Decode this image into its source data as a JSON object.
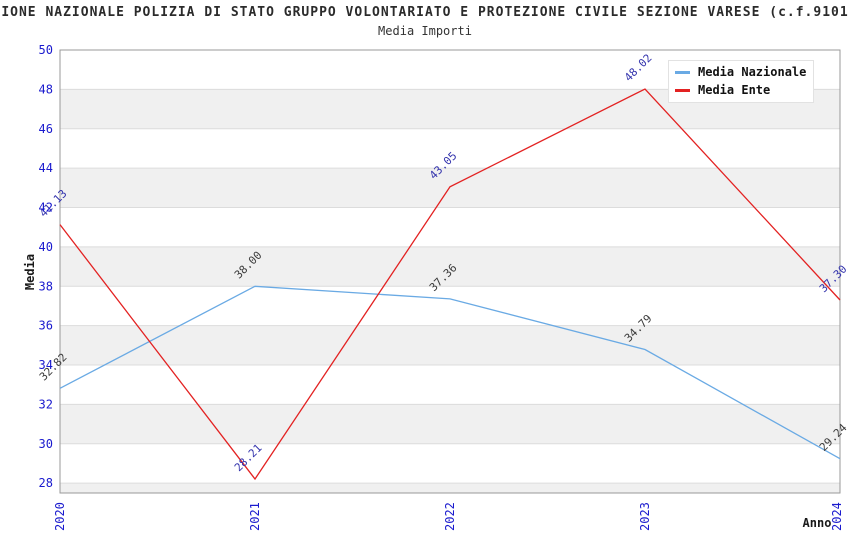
{
  "figure": {
    "title": "IONE NAZIONALE POLIZIA DI STATO GRUPPO VOLONTARIATO E PROTEZIONE CIVILE SEZIONE VARESE (c.f.9101",
    "subtitle": "Media Importi"
  },
  "chart_data": {
    "type": "line",
    "title": "Media Importi",
    "categories": [
      "2020",
      "2021",
      "2022",
      "2023",
      "2024"
    ],
    "series": [
      {
        "name": "Media Nazionale",
        "color": "#6aaae4",
        "label_color": "#3c3c3c",
        "values": [
          32.82,
          38.0,
          37.36,
          34.79,
          29.24
        ],
        "point_labels": [
          "32.82",
          "38.00",
          "37.36",
          "34.79",
          "29.24"
        ]
      },
      {
        "name": "Media Ente",
        "color": "#e32222",
        "label_color": "#3434ad",
        "values": [
          41.13,
          28.21,
          43.05,
          48.02,
          37.3
        ],
        "point_labels": [
          "41.13",
          "28.21",
          "43.05",
          "48.02",
          "37.30"
        ]
      }
    ],
    "xlabel": "Anno",
    "ylabel": "Media",
    "ylim": [
      27.5,
      50
    ],
    "yticks": [
      28,
      30,
      32,
      34,
      36,
      38,
      40,
      42,
      44,
      46,
      48,
      50
    ],
    "grid": "horizontal-bands",
    "band_color": "#f0f0f0",
    "grid_color": "#dcdcdc",
    "border_color": "#999999",
    "tick_label_color": "#1a1ace",
    "legend_position": "top-right"
  }
}
